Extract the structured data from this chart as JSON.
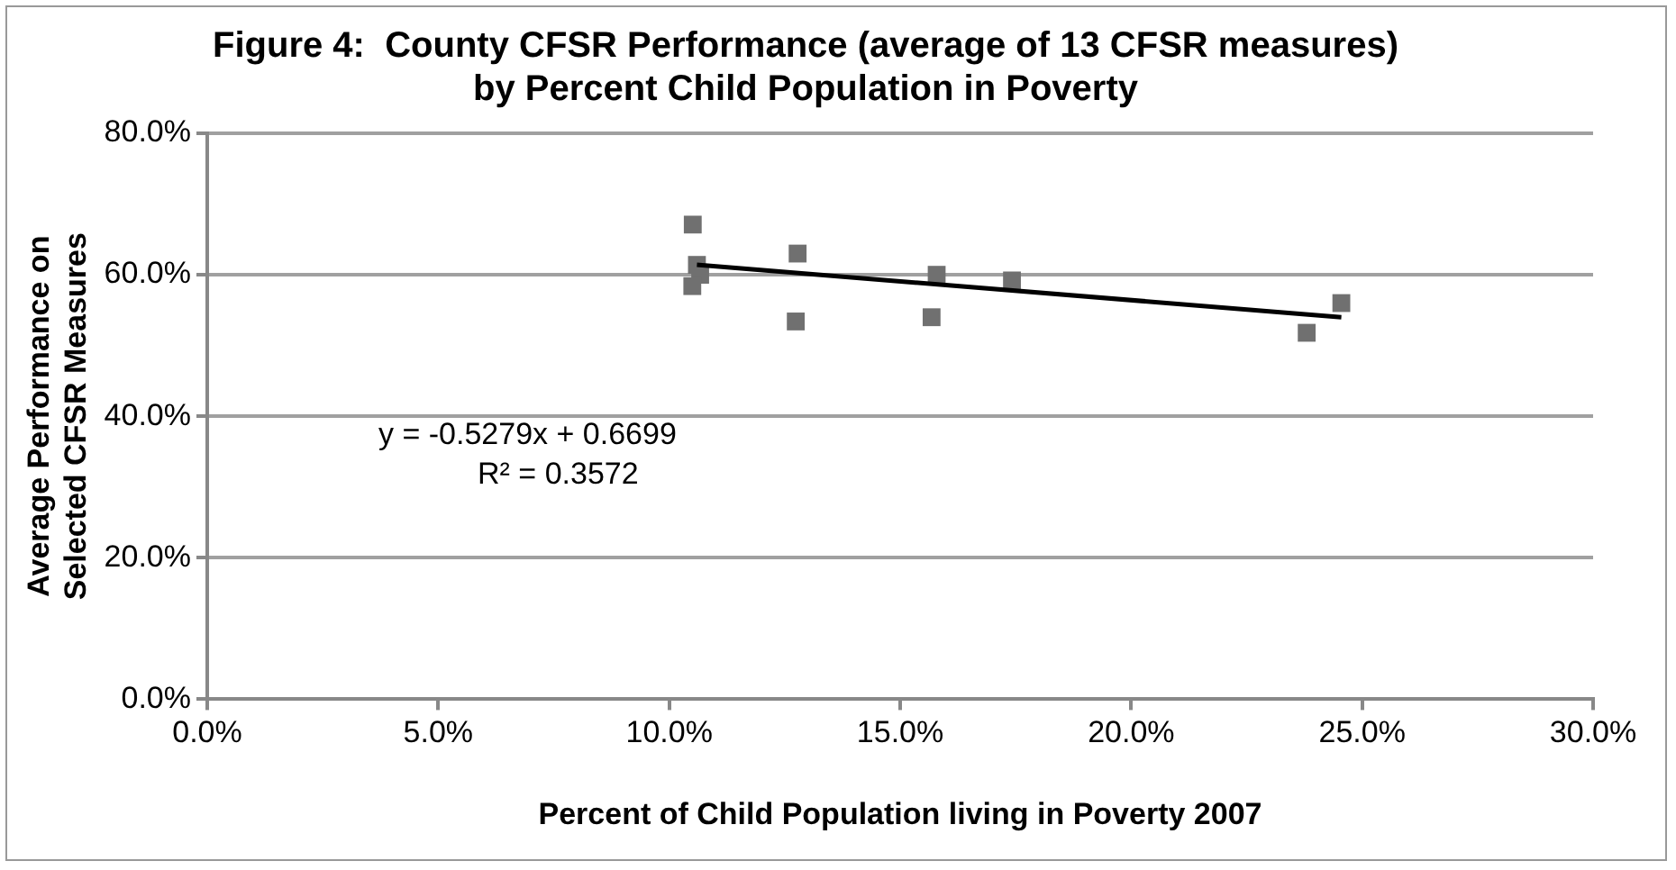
{
  "chart_data": {
    "type": "scatter",
    "title": "Figure 4:  County CFSR Performance (average of 13 CFSR measures) by Percent Child Population in Poverty",
    "xlabel": "Percent of Child Population living in Poverty 2007",
    "ylabel": "Average Performance on Selected CFSR Measures",
    "annotations": [
      "y = -0.5279x + 0.6699",
      "R² = 0.3572"
    ],
    "series": [
      {
        "color": "#707070",
        "marker": "square",
        "x": [
          0.1051,
          0.1067,
          0.106,
          0.105,
          0.1278,
          0.1274,
          0.1579,
          0.1568,
          0.1742,
          0.238,
          0.2455
        ],
        "values": [
          0.671,
          0.6,
          0.614,
          0.584,
          0.63,
          0.534,
          0.6,
          0.54,
          0.592,
          0.518,
          0.56
        ]
      },
      {
        "type": "line",
        "color": "#000000",
        "marker": "none",
        "x": [
          0.106,
          0.2455
        ],
        "values": [
          0.614,
          0.54
        ]
      }
    ],
    "xlim": [
      0,
      0.3
    ],
    "xticks": [
      {
        "value": 0,
        "label": "0.0%"
      },
      {
        "value": 0.05,
        "label": "5.0%"
      },
      {
        "value": 0.1,
        "label": "10.0%"
      },
      {
        "value": 0.15,
        "label": "15.0%"
      },
      {
        "value": 0.2,
        "label": "20.0%"
      },
      {
        "value": 0.25,
        "label": "25.0%"
      },
      {
        "value": 0.3,
        "label": "30.0%"
      }
    ],
    "ylim": [
      0,
      0.8
    ],
    "yticks": [
      {
        "value": 0,
        "label": "0.0%"
      },
      {
        "value": 0.2,
        "label": "20.0%"
      },
      {
        "value": 0.4,
        "label": "40.0%"
      },
      {
        "value": 0.6,
        "label": "60.0%"
      },
      {
        "value": 0.8,
        "label": "80.0%"
      }
    ],
    "grid": "y",
    "legend": false
  }
}
